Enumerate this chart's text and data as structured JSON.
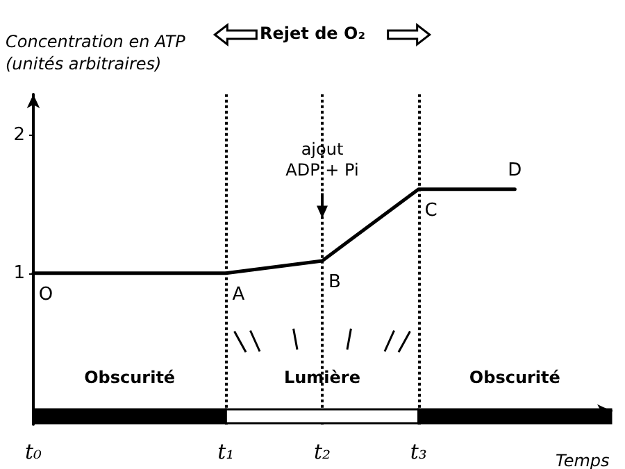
{
  "chart_data": {
    "type": "line",
    "ylabel": "Concentration en ATP\n(unités arbitraires)",
    "xlabel": "Temps",
    "categories": [
      "t₀",
      null,
      "t₁",
      "t₂",
      "t₃",
      null,
      null
    ],
    "values": [
      1,
      1,
      1,
      1.09,
      1.61,
      1.61,
      null
    ],
    "color": "#000000",
    "ylim": [
      -0.1,
      2.3
    ],
    "yticks": [
      1,
      2
    ],
    "marker": "none",
    "line_style": "solid",
    "grid": false,
    "ref_lines": [
      {
        "axis": "x",
        "value": "t₁",
        "label": null,
        "line_style": "dotted",
        "color": "#000000"
      },
      {
        "axis": "x",
        "value": "t₂",
        "label": null,
        "line_style": "dotted",
        "color": "#000000"
      },
      {
        "axis": "x",
        "value": "t₃",
        "label": null,
        "line_style": "dotted",
        "color": "#000000"
      }
    ],
    "annotations": [
      "Rejet de O₂",
      "Obscurité",
      "Lumière",
      "Obscurité",
      {
        "text": "ajout\nADP + Pi",
        "x": "t₂",
        "y": 1.4
      },
      {
        "text": "O",
        "x": "t₀",
        "y": 1
      },
      {
        "text": "A",
        "x": "t₁",
        "y": 1
      },
      {
        "text": "B",
        "x": "t₂",
        "y": 1.09
      },
      {
        "text": "C",
        "x": "t₃",
        "y": 1.61
      },
      {
        "text": "D",
        "y": 1.61
      }
    ]
  }
}
